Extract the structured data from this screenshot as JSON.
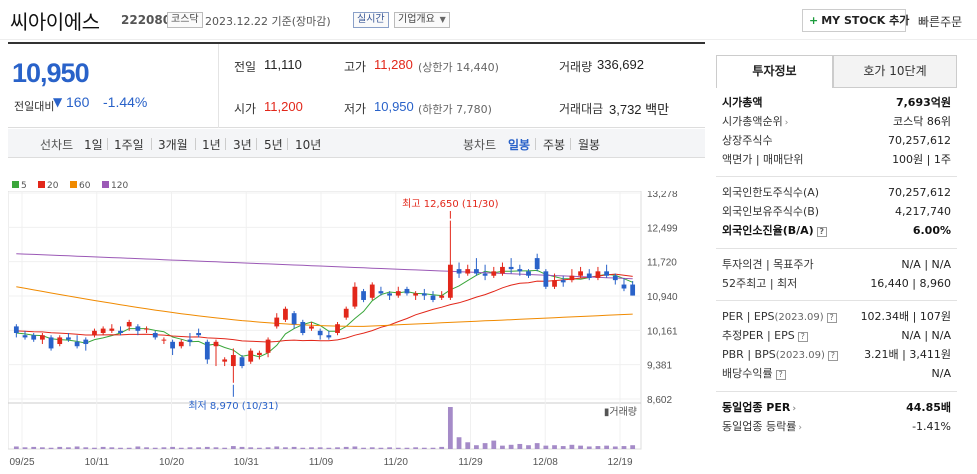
{
  "header": {
    "name": "씨아이에스",
    "code": "222080",
    "market": "코스닥",
    "date": "2023.12.22 기준(장마감)",
    "realtime": "실시간",
    "company_info": "기업개요",
    "mystock": "MY STOCK 추가",
    "quick_order": "빠른주문"
  },
  "quote": {
    "price": "10,950",
    "change_label": "전일대비",
    "change_arrow": "▼",
    "change_value": "160",
    "change_pct": "-1.44%",
    "prev_close_label": "전일",
    "prev_close": "11,110",
    "high_label": "고가",
    "high": "11,280",
    "upper_limit": "(상한가 14,440)",
    "volume_label": "거래량",
    "volume": "336,692",
    "open_label": "시가",
    "open": "11,200",
    "low_label": "저가",
    "low": "10,950",
    "lower_limit": "(하한가 7,780)",
    "amount_label": "거래대금",
    "amount": "3,732 백만"
  },
  "period": {
    "line_label": "선차트",
    "line_items": [
      "1일",
      "1주일",
      "3개월",
      "1년",
      "3년",
      "5년",
      "10년"
    ],
    "candle_label": "봉차트",
    "candle_items": [
      "일봉",
      "주봉",
      "월봉"
    ],
    "active": "일봉"
  },
  "chart_data": {
    "type": "candlestick",
    "legend": [
      {
        "name": "5",
        "color": "#3aa63a"
      },
      {
        "name": "20",
        "color": "#e2271a"
      },
      {
        "name": "60",
        "color": "#f08a00"
      },
      {
        "name": "120",
        "color": "#9b59b6"
      }
    ],
    "y_ticks": [
      "13,278",
      "12,499",
      "11,720",
      "10,940",
      "10,161",
      "9,381",
      "8,602"
    ],
    "ylim": [
      8602,
      13278
    ],
    "x_ticks": [
      "09/25",
      "10/11",
      "10/20",
      "10/31",
      "11/09",
      "11/20",
      "11/29",
      "12/08",
      "12/19"
    ],
    "high_annotation": "최고 12,650 (11/30)",
    "low_annotation": "최저 8,970 (10/31)",
    "volume_label": "거래량",
    "candles": [
      [
        10250,
        10100,
        10300,
        10000
      ],
      [
        10050,
        10000,
        10150,
        9950
      ],
      [
        10050,
        9950,
        10100,
        9900
      ],
      [
        9950,
        10050,
        10100,
        9850
      ],
      [
        10000,
        9750,
        10050,
        9700
      ],
      [
        9850,
        10000,
        10050,
        9800
      ],
      [
        10000,
        9950,
        10100,
        9900
      ],
      [
        9900,
        9800,
        10050,
        9750
      ],
      [
        9950,
        9850,
        10000,
        9700
      ],
      [
        10050,
        10150,
        10200,
        10000
      ],
      [
        10100,
        10200,
        10250,
        10050
      ],
      [
        10150,
        10200,
        10300,
        10100
      ],
      [
        10150,
        10100,
        10250,
        10050
      ],
      [
        10250,
        10350,
        10400,
        10150
      ],
      [
        10250,
        10150,
        10300,
        10050
      ],
      [
        10200,
        10200,
        10250,
        10100
      ],
      [
        10100,
        10000,
        10150,
        9950
      ],
      [
        9950,
        9950,
        10000,
        9850
      ],
      [
        9900,
        9750,
        9950,
        9600
      ],
      [
        9800,
        9900,
        9950,
        9750
      ],
      [
        9950,
        9900,
        10100,
        9800
      ],
      [
        10100,
        10050,
        10200,
        10000
      ],
      [
        9900,
        9500,
        9950,
        9400
      ],
      [
        9800,
        9900,
        9950,
        9350
      ],
      [
        9450,
        9500,
        9550,
        9350
      ],
      [
        9350,
        9600,
        9750,
        8970
      ],
      [
        9550,
        9350,
        9600,
        9300
      ],
      [
        9450,
        9700,
        9750,
        9400
      ],
      [
        9600,
        9650,
        9700,
        9500
      ],
      [
        9650,
        9950,
        10000,
        9550
      ],
      [
        10250,
        10450,
        10550,
        10200
      ],
      [
        10400,
        10650,
        10700,
        10350
      ],
      [
        10550,
        10300,
        10600,
        10200
      ],
      [
        10350,
        10100,
        10400,
        10050
      ],
      [
        10200,
        10250,
        10350,
        10150
      ],
      [
        10150,
        10050,
        10200,
        9950
      ],
      [
        10050,
        10000,
        10150,
        9950
      ],
      [
        10100,
        10300,
        10350,
        10050
      ],
      [
        10450,
        10650,
        10700,
        10400
      ],
      [
        10700,
        11150,
        11250,
        10650
      ],
      [
        11050,
        10850,
        11100,
        10800
      ],
      [
        10900,
        11200,
        11250,
        10850
      ],
      [
        11050,
        11000,
        11150,
        10950
      ],
      [
        11000,
        10950,
        11050,
        10850
      ],
      [
        10950,
        11050,
        11150,
        10900
      ],
      [
        11100,
        11000,
        11150,
        10950
      ],
      [
        10950,
        11000,
        11050,
        10850
      ],
      [
        11000,
        10950,
        11100,
        10850
      ],
      [
        10950,
        10850,
        11050,
        10800
      ],
      [
        10900,
        10950,
        11050,
        10850
      ],
      [
        10900,
        11650,
        12650,
        10850
      ],
      [
        11550,
        11450,
        11700,
        11350
      ],
      [
        11450,
        11550,
        11650,
        11400
      ],
      [
        11550,
        11450,
        11800,
        11400
      ],
      [
        11450,
        11400,
        11650,
        11300
      ],
      [
        11400,
        11500,
        11600,
        11350
      ],
      [
        11450,
        11600,
        11700,
        11400
      ],
      [
        11600,
        11550,
        11800,
        11450
      ],
      [
        11550,
        11500,
        11650,
        11400
      ],
      [
        11500,
        11400,
        11550,
        11350
      ],
      [
        11800,
        11550,
        11900,
        11500
      ],
      [
        11500,
        11150,
        11550,
        11100
      ],
      [
        11150,
        11300,
        11450,
        11100
      ],
      [
        11300,
        11250,
        11400,
        11150
      ],
      [
        11300,
        11400,
        11550,
        11250
      ],
      [
        11400,
        11500,
        11600,
        11350
      ],
      [
        11450,
        11350,
        11550,
        11300
      ],
      [
        11350,
        11500,
        11600,
        11300
      ],
      [
        11500,
        11400,
        11650,
        11350
      ],
      [
        11400,
        11300,
        11450,
        11200
      ],
      [
        11200,
        11110,
        11350,
        11050
      ],
      [
        11200,
        10950,
        11280,
        10950
      ]
    ],
    "volume_values": [
      6,
      4,
      5,
      4,
      3,
      5,
      4,
      6,
      4,
      3,
      5,
      4,
      3,
      3,
      6,
      4,
      3,
      4,
      5,
      3,
      4,
      4,
      5,
      4,
      3,
      7,
      5,
      4,
      3,
      4,
      6,
      4,
      5,
      3,
      4,
      4,
      3,
      4,
      5,
      6,
      3,
      4,
      3,
      4,
      3,
      3,
      4,
      3,
      3,
      5,
      100,
      28,
      16,
      9,
      14,
      20,
      8,
      10,
      12,
      9,
      14,
      8,
      9,
      7,
      10,
      8,
      6,
      7,
      8,
      6,
      7,
      9
    ]
  },
  "invest": {
    "tab_invest": "투자정보",
    "tab_orderbook": "호가 10단계",
    "market_cap_label": "시가총액",
    "market_cap": "7,693억원",
    "market_cap_rank_label": "시가총액순위",
    "market_cap_rank": "코스닥 86위",
    "listed_shares_label": "상장주식수",
    "listed_shares": "70,257,612",
    "par_label": "액면가 | 매매단위",
    "par": "100원 | 1주",
    "foreign_limit_label": "외국인한도주식수(A)",
    "foreign_limit": "70,257,612",
    "foreign_hold_label": "외국인보유주식수(B)",
    "foreign_hold": "4,217,740",
    "foreign_ratio_label": "외국인소진율(B/A)",
    "foreign_ratio": "6.00%",
    "opinion_label": "투자의견 | 목표주가",
    "opinion": "N/A | N/A",
    "w52_label": "52주최고 | 최저",
    "w52": "16,440 | 8,960",
    "per_label": "PER | EPS",
    "per_date": "(2023.09)",
    "per": "102.34배 | 107원",
    "est_per_label": "추정PER | EPS",
    "est_per": "N/A | N/A",
    "pbr_label": "PBR | BPS",
    "pbr_date": "(2023.09)",
    "pbr": "3.21배 | 3,411원",
    "div_label": "배당수익률",
    "div": "N/A",
    "sector_per_label": "동일업종 PER",
    "sector_per": "44.85배",
    "sector_rate_label": "동일업종 등락률",
    "sector_rate": "-1.41%"
  }
}
